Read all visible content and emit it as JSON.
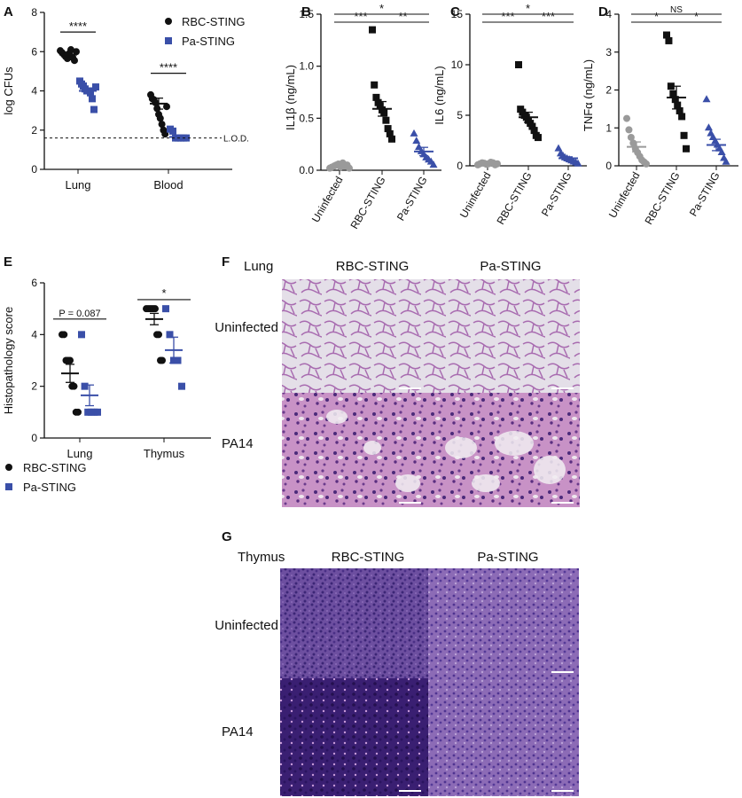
{
  "colors": {
    "black": "#111111",
    "blue": "#3a4fa8",
    "gray": "#9a9a9a"
  },
  "chart_data": [
    {
      "panel": "A",
      "type": "scatter",
      "ylabel": "log CFUs",
      "ylim": [
        0,
        8
      ],
      "yticks": [
        "0",
        "2",
        "4",
        "6",
        "8"
      ],
      "categories": [
        "Lung",
        "Blood"
      ],
      "legend": [
        "RBC-STING",
        "Pa-STING"
      ],
      "lod_label": "L.O.D.",
      "lod": 1.6,
      "sig": [
        "****",
        "****"
      ],
      "series": [
        {
          "name": "RBC-STING",
          "color": "black",
          "marker": "circle",
          "groups": [
            [
              6.05,
              5.95,
              5.85,
              5.75,
              5.65,
              5.9,
              6.1,
              5.7,
              5.55,
              6.0
            ],
            [
              3.8,
              3.6,
              3.55,
              3.4,
              3.1,
              2.8,
              2.6,
              2.3,
              2.0,
              1.8,
              3.2
            ]
          ],
          "mean": [
            5.85,
            3.35
          ],
          "sem": [
            0.12,
            0.28
          ]
        },
        {
          "name": "Pa-STING",
          "color": "blue",
          "marker": "square",
          "groups": [
            [
              4.5,
              4.35,
              4.25,
              4.1,
              4.0,
              4.0,
              3.9,
              3.6,
              3.05,
              4.2
            ],
            [
              2.05,
              1.95,
              1.6,
              1.6,
              1.6,
              1.6,
              1.6
            ]
          ],
          "mean": [
            4.0,
            1.65
          ],
          "sem": [
            0.15,
            0.1
          ]
        }
      ]
    },
    {
      "panel": "B",
      "type": "scatter",
      "ylabel": "IL1β (ng/mL)",
      "ylim": [
        0,
        1.5
      ],
      "yticks": [
        "0.0",
        "0.5",
        "1.0",
        "1.5"
      ],
      "categories": [
        "Uninfected",
        "RBC-STING",
        "Pa-STING"
      ],
      "sig": [
        {
          "from": 0,
          "to": 2,
          "label": "*"
        },
        {
          "from": 0,
          "to": 1,
          "label": "***"
        },
        {
          "from": 1,
          "to": 2,
          "label": "**"
        }
      ],
      "groups": [
        {
          "color": "gray",
          "marker": "circle",
          "values": [
            0.02,
            0.03,
            0.04,
            0.05,
            0.06,
            0.03,
            0.07,
            0.04,
            0.05,
            0.02
          ],
          "mean": 0.05,
          "sem": 0.01
        },
        {
          "color": "black",
          "marker": "square",
          "values": [
            1.35,
            0.82,
            0.7,
            0.65,
            0.62,
            0.58,
            0.55,
            0.48,
            0.4,
            0.35,
            0.3
          ],
          "mean": 0.59,
          "sem": 0.07
        },
        {
          "color": "blue",
          "marker": "triangle",
          "values": [
            0.35,
            0.28,
            0.22,
            0.18,
            0.15,
            0.12,
            0.1,
            0.08,
            0.05
          ],
          "mean": 0.18,
          "sem": 0.04
        }
      ]
    },
    {
      "panel": "C",
      "type": "scatter",
      "ylabel": "IL6 (ng/mL)",
      "ylim": [
        0,
        15
      ],
      "yticks": [
        "0",
        "5",
        "10",
        "15"
      ],
      "categories": [
        "Uninfected",
        "RBC-STING",
        "Pa-STING"
      ],
      "sig": [
        {
          "from": 0,
          "to": 2,
          "label": "*"
        },
        {
          "from": 0,
          "to": 1,
          "label": "***"
        },
        {
          "from": 1,
          "to": 2,
          "label": "***"
        }
      ],
      "groups": [
        {
          "color": "gray",
          "marker": "circle",
          "values": [
            0.1,
            0.2,
            0.3,
            0.25,
            0.15,
            0.2,
            0.35,
            0.3,
            0.1,
            0.2
          ],
          "mean": 0.22,
          "sem": 0.03
        },
        {
          "color": "black",
          "marker": "square",
          "values": [
            10.0,
            5.6,
            5.3,
            5.0,
            4.8,
            4.5,
            4.2,
            3.9,
            3.5,
            3.0,
            2.8
          ],
          "mean": 4.8,
          "sem": 0.5
        },
        {
          "color": "blue",
          "marker": "triangle",
          "values": [
            1.7,
            1.2,
            1.0,
            0.8,
            0.7,
            0.6,
            0.5,
            0.4,
            0.3,
            0.2
          ],
          "mean": 0.75,
          "sem": 0.14
        }
      ]
    },
    {
      "panel": "D",
      "type": "scatter",
      "ylabel": "TNFα (ng/mL)",
      "ylim": [
        0,
        4
      ],
      "yticks": [
        "0",
        "1",
        "2",
        "3",
        "4"
      ],
      "categories": [
        "Uninfected",
        "RBC-STING",
        "Pa-STING"
      ],
      "sig": [
        {
          "from": 0,
          "to": 2,
          "label": "NS"
        },
        {
          "from": 0,
          "to": 1,
          "label": "*"
        },
        {
          "from": 1,
          "to": 2,
          "label": "*"
        }
      ],
      "groups": [
        {
          "color": "gray",
          "marker": "circle",
          "values": [
            1.25,
            0.95,
            0.75,
            0.6,
            0.45,
            0.35,
            0.25,
            0.15,
            0.1,
            0.05
          ],
          "mean": 0.5,
          "sem": 0.13
        },
        {
          "color": "black",
          "marker": "square",
          "values": [
            3.45,
            3.3,
            2.1,
            1.9,
            1.75,
            1.6,
            1.45,
            1.3,
            0.8,
            0.45
          ],
          "mean": 1.8,
          "sem": 0.3
        },
        {
          "color": "blue",
          "marker": "triangle",
          "values": [
            1.75,
            1.0,
            0.85,
            0.75,
            0.65,
            0.55,
            0.45,
            0.35,
            0.2,
            0.1
          ],
          "mean": 0.55,
          "sem": 0.15
        }
      ]
    },
    {
      "panel": "E",
      "type": "scatter",
      "ylabel": "Histopathology score",
      "ylim": [
        0,
        6
      ],
      "yticks": [
        "0",
        "2",
        "4",
        "6"
      ],
      "categories": [
        "Lung",
        "Thymus"
      ],
      "legend": [
        "RBC-STING",
        "Pa-STING"
      ],
      "sig": [
        "P = 0.087",
        "*"
      ],
      "series": [
        {
          "name": "RBC-STING",
          "color": "black",
          "marker": "circle",
          "groups": [
            [
              4,
              4,
              3,
              3,
              3,
              2,
              2,
              1,
              1
            ],
            [
              5,
              5,
              5,
              5,
              5,
              5,
              4,
              4,
              3,
              3
            ]
          ],
          "mean": [
            2.5,
            4.6
          ],
          "sem": [
            0.35,
            0.22
          ]
        },
        {
          "name": "Pa-STING",
          "color": "blue",
          "marker": "square",
          "groups": [
            [
              4,
              2,
              1,
              1,
              1,
              1
            ],
            [
              5,
              4,
              3,
              3,
              2
            ]
          ],
          "mean": [
            1.65,
            3.4
          ],
          "sem": [
            0.4,
            0.5
          ]
        }
      ]
    }
  ],
  "histology": {
    "F": {
      "tissue": "Lung",
      "columns": [
        "RBC-STING",
        "Pa-STING"
      ],
      "rows": [
        "Uninfected",
        "PA14"
      ]
    },
    "G": {
      "tissue": "Thymus",
      "columns": [
        "RBC-STING",
        "Pa-STING"
      ],
      "rows": [
        "Uninfected",
        "PA14"
      ]
    }
  },
  "panel_labels": [
    "A",
    "B",
    "C",
    "D",
    "E",
    "F",
    "G"
  ]
}
